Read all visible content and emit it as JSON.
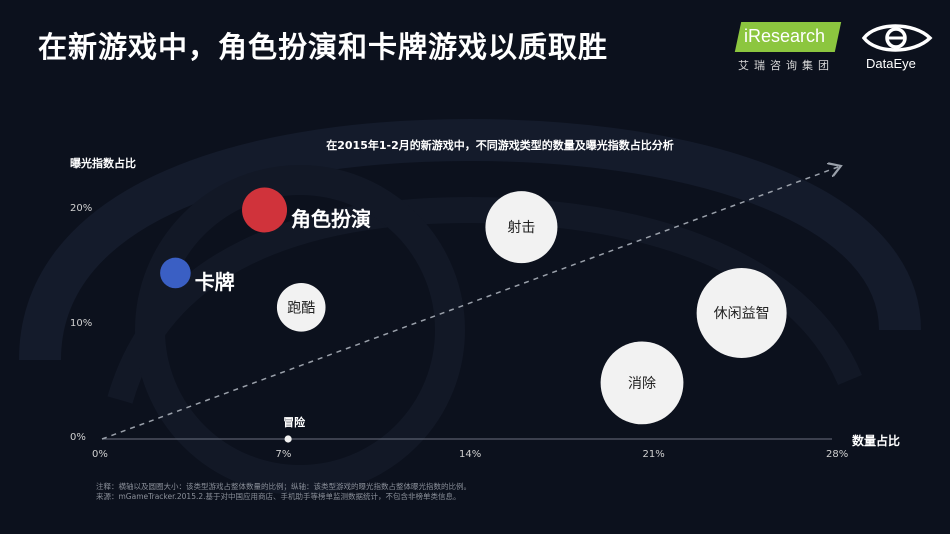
{
  "title": "在新游戏中，角色扮演和卡牌游戏以质取胜",
  "logos": {
    "iresearch_name": "iResearch",
    "iresearch_sub": "艾瑞咨询集团",
    "dataeye_name": "DataEye"
  },
  "notes": [
    "注释：横轴以及圆圈大小：该类型游戏占整体数量的比例；纵轴：该类型游戏的曝光指数占整体曝光指数的比例。",
    "来源：mGameTracker.2015.2.基于对中国应用商店、手机助手等榜单监测数据统计，不包含非榜单类信息。"
  ],
  "chart_data": {
    "type": "scatter",
    "title": "在2015年1-2月的新游戏中，不同游戏类型的数量及曝光指数占比分析",
    "xlabel": "数量占比",
    "ylabel": "曝光指数占比",
    "xlim": [
      0,
      28
    ],
    "ylim": [
      0,
      20
    ],
    "x_ticks": [
      "0%",
      "7%",
      "14%",
      "21%",
      "28%"
    ],
    "y_ticks": [
      "0%",
      "10%",
      "20%"
    ],
    "trend_arrow": true,
    "points": [
      {
        "label": "角色扮演",
        "x": 6.2,
        "y": 20.0,
        "size": 2.5,
        "color": "#d0333b",
        "label_style": "outside-bold"
      },
      {
        "label": "卡牌",
        "x": 2.8,
        "y": 14.5,
        "size": 1.7,
        "color": "#3a5fc4",
        "label_style": "outside-bold"
      },
      {
        "label": "跑酷",
        "x": 7.6,
        "y": 11.5,
        "size": 2.7,
        "color": "#f2f2f2",
        "label_style": "inside"
      },
      {
        "label": "冒险",
        "x": 7.1,
        "y": 0.0,
        "size": 0.4,
        "color": "#f2f2f2",
        "label_style": "above-small"
      },
      {
        "label": "射击",
        "x": 16.0,
        "y": 18.5,
        "size": 4.0,
        "color": "#f2f2f2",
        "label_style": "inside"
      },
      {
        "label": "休闲益智",
        "x": 24.4,
        "y": 11.0,
        "size": 5.0,
        "color": "#f2f2f2",
        "label_style": "inside"
      },
      {
        "label": "消除",
        "x": 20.6,
        "y": 4.9,
        "size": 4.6,
        "color": "#f2f2f2",
        "label_style": "inside"
      }
    ]
  }
}
